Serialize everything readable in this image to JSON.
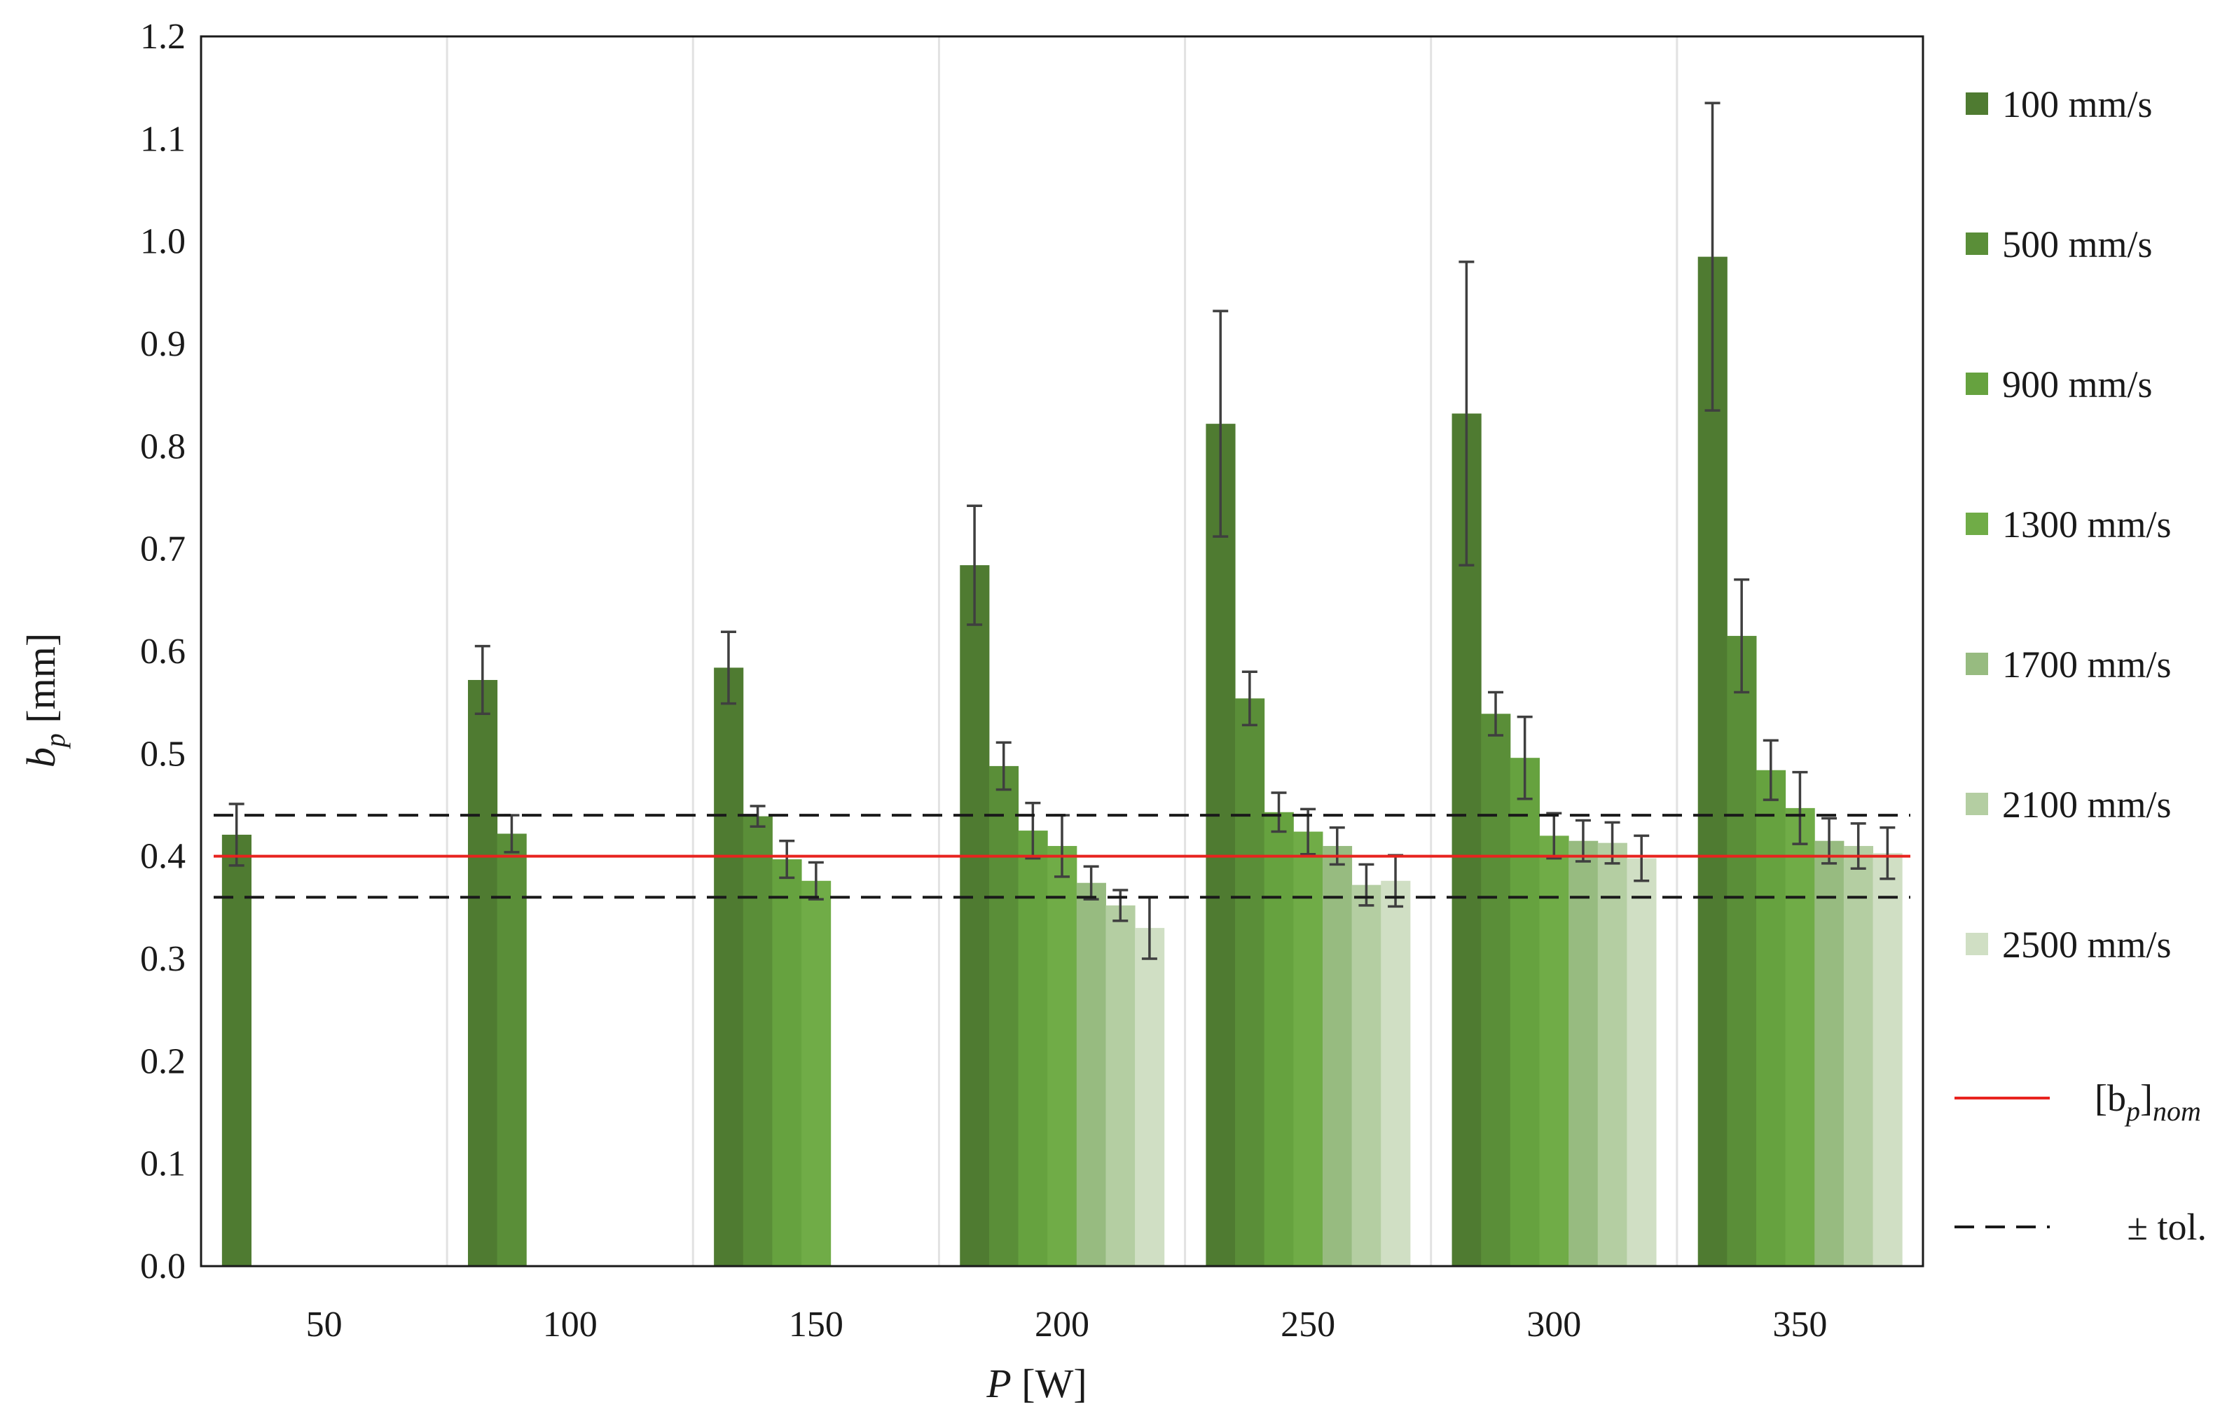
{
  "chart_data": {
    "type": "bar",
    "xlabel": {
      "var": "P",
      "unit": "[W]"
    },
    "ylabel": {
      "var": "b",
      "sub": "p",
      "unit": "[mm]"
    },
    "categories": [
      "50",
      "100",
      "150",
      "200",
      "250",
      "300",
      "350"
    ],
    "ylim": [
      0,
      1.2
    ],
    "yticks": [
      "0.0",
      "0.1",
      "0.2",
      "0.3",
      "0.4",
      "0.5",
      "0.6",
      "0.7",
      "0.8",
      "0.9",
      "1.0",
      "1.1",
      "1.2"
    ],
    "grid": "vertical",
    "legend_position": "right",
    "series": [
      {
        "name": "100 mm/s",
        "color": "#4f7b31",
        "values": [
          0.421,
          0.572,
          0.584,
          0.684,
          0.822,
          0.832,
          0.985
        ],
        "errors": [
          0.03,
          0.033,
          0.035,
          0.058,
          0.11,
          0.148,
          0.15
        ]
      },
      {
        "name": "500 mm/s",
        "color": "#5a8e38",
        "values": [
          null,
          0.422,
          0.439,
          0.488,
          0.554,
          0.539,
          0.615
        ],
        "errors": [
          null,
          0.018,
          0.01,
          0.023,
          0.026,
          0.021,
          0.055
        ]
      },
      {
        "name": "900 mm/s",
        "color": "#66a23f",
        "values": [
          null,
          null,
          0.397,
          0.425,
          0.443,
          0.496,
          0.484
        ],
        "errors": [
          null,
          null,
          0.018,
          0.027,
          0.019,
          0.04,
          0.029
        ]
      },
      {
        "name": "1300 mm/s",
        "color": "#70ac47",
        "values": [
          null,
          null,
          0.376,
          0.41,
          0.424,
          0.42,
          0.447
        ],
        "errors": [
          null,
          null,
          0.018,
          0.03,
          0.022,
          0.022,
          0.035
        ]
      },
      {
        "name": "1700 mm/s",
        "color": "#97bb80",
        "values": [
          null,
          null,
          null,
          0.374,
          0.41,
          0.415,
          0.415
        ],
        "errors": [
          null,
          null,
          null,
          0.016,
          0.018,
          0.02,
          0.022
        ]
      },
      {
        "name": "2100 mm/s",
        "color": "#b4cea2",
        "values": [
          null,
          null,
          null,
          0.352,
          0.372,
          0.413,
          0.41
        ],
        "errors": [
          null,
          null,
          null,
          0.015,
          0.02,
          0.02,
          0.022
        ]
      },
      {
        "name": "2500 mm/s",
        "color": "#d0dfc4",
        "values": [
          null,
          null,
          null,
          0.33,
          0.376,
          0.398,
          0.403
        ],
        "errors": [
          null,
          null,
          null,
          0.03,
          0.025,
          0.022,
          0.025
        ]
      }
    ],
    "reference_lines": [
      {
        "name": "[b_p]_nom",
        "label_main": "[b",
        "label_sub": "p",
        "label_close": "]",
        "label_sub2": "nom",
        "value": 0.4,
        "color": "#e8231f",
        "style": "solid"
      },
      {
        "name": "± tol.",
        "label": "± tol.",
        "values": [
          0.36,
          0.44
        ],
        "color": "#1a1a1a",
        "style": "dashed"
      }
    ]
  }
}
